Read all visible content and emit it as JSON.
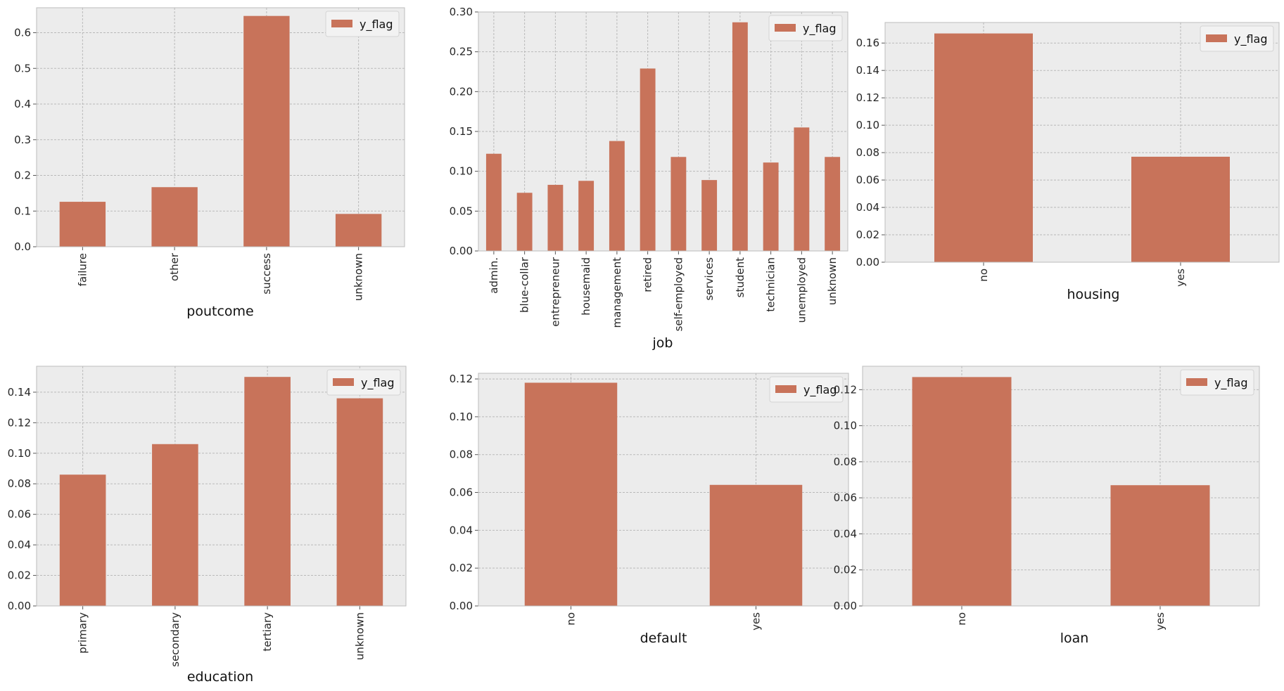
{
  "style": {
    "bar_color": "#c8735a",
    "plot_bg": "#ececec",
    "grid_color": "#b9b9b9",
    "frame_color": "#bcbcbc"
  },
  "chart_data": [
    {
      "type": "bar",
      "categories": [
        "failure",
        "other",
        "success",
        "unknown"
      ],
      "series": [
        {
          "name": "y_flag",
          "values": [
            0.126,
            0.167,
            0.647,
            0.092
          ]
        }
      ],
      "xlabel": "poutcome",
      "ylabel": "",
      "ylim": [
        0,
        0.67
      ],
      "yticks": [
        "0.0",
        "0.1",
        "0.2",
        "0.3",
        "0.4",
        "0.5",
        "0.6"
      ],
      "grid": true,
      "legend": "upper right"
    },
    {
      "type": "bar",
      "categories": [
        "admin.",
        "blue-collar",
        "entrepreneur",
        "housemaid",
        "management",
        "retired",
        "self-employed",
        "services",
        "student",
        "technician",
        "unemployed",
        "unknown"
      ],
      "series": [
        {
          "name": "y_flag",
          "values": [
            0.122,
            0.073,
            0.083,
            0.088,
            0.138,
            0.229,
            0.118,
            0.089,
            0.287,
            0.111,
            0.155,
            0.118
          ]
        }
      ],
      "xlabel": "job",
      "ylabel": "",
      "ylim": [
        0,
        0.3
      ],
      "yticks": [
        "0.00",
        "0.05",
        "0.10",
        "0.15",
        "0.20",
        "0.25",
        "0.30"
      ],
      "grid": true,
      "legend": "upper right"
    },
    {
      "type": "bar",
      "categories": [
        "no",
        "yes"
      ],
      "series": [
        {
          "name": "y_flag",
          "values": [
            0.167,
            0.077
          ]
        }
      ],
      "xlabel": "housing",
      "ylabel": "",
      "ylim": [
        0,
        0.175
      ],
      "yticks": [
        "0.00",
        "0.02",
        "0.04",
        "0.06",
        "0.08",
        "0.10",
        "0.12",
        "0.14",
        "0.16"
      ],
      "grid": true,
      "legend": "upper right"
    },
    {
      "type": "bar",
      "categories": [
        "primary",
        "secondary",
        "tertiary",
        "unknown"
      ],
      "series": [
        {
          "name": "y_flag",
          "values": [
            0.086,
            0.106,
            0.15,
            0.136
          ]
        }
      ],
      "xlabel": "education",
      "ylabel": "",
      "ylim": [
        0,
        0.157
      ],
      "yticks": [
        "0.00",
        "0.02",
        "0.04",
        "0.06",
        "0.08",
        "0.10",
        "0.12",
        "0.14"
      ],
      "grid": true,
      "legend": "upper right"
    },
    {
      "type": "bar",
      "categories": [
        "no",
        "yes"
      ],
      "series": [
        {
          "name": "y_flag",
          "values": [
            0.118,
            0.064
          ]
        }
      ],
      "xlabel": "default",
      "ylabel": "",
      "ylim": [
        0,
        0.123
      ],
      "yticks": [
        "0.00",
        "0.02",
        "0.04",
        "0.06",
        "0.08",
        "0.10",
        "0.12"
      ],
      "grid": true,
      "legend": "upper right"
    },
    {
      "type": "bar",
      "categories": [
        "no",
        "yes"
      ],
      "series": [
        {
          "name": "y_flag",
          "values": [
            0.127,
            0.067
          ]
        }
      ],
      "xlabel": "loan",
      "ylabel": "",
      "ylim": [
        0,
        0.133
      ],
      "yticks": [
        "0.00",
        "0.02",
        "0.04",
        "0.06",
        "0.08",
        "0.10",
        "0.12"
      ],
      "grid": true,
      "legend": "upper right"
    }
  ]
}
